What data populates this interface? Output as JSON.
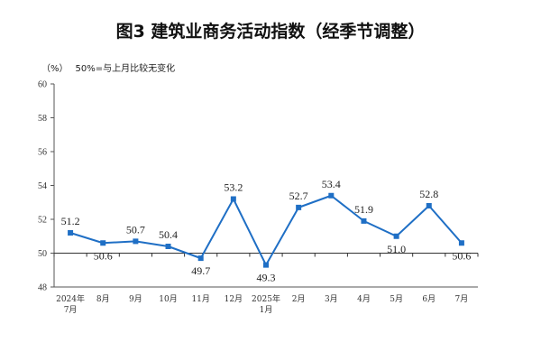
{
  "chart_data": {
    "type": "line",
    "title": "图3  建筑业商务活动指数（经季节调整）",
    "unit": "（%）",
    "note": "50%=与上月比较无变化",
    "categories": [
      [
        "2024年",
        "7月"
      ],
      [
        "8月"
      ],
      [
        "9月"
      ],
      [
        "10月"
      ],
      [
        "11月"
      ],
      [
        "12月"
      ],
      [
        "2025年",
        "1月"
      ],
      [
        "2月"
      ],
      [
        "3月"
      ],
      [
        "4月"
      ],
      [
        "5月"
      ],
      [
        "6月"
      ],
      [
        "7月"
      ]
    ],
    "values": [
      51.2,
      50.6,
      50.7,
      50.4,
      49.7,
      53.2,
      49.3,
      52.7,
      53.4,
      51.9,
      51.0,
      52.8,
      50.6
    ],
    "data_labels": [
      "51.2",
      "50.6",
      "50.7",
      "50.4",
      "49.7",
      "53.2",
      "49.3",
      "52.7",
      "53.4",
      "51.9",
      "51.0",
      "52.8",
      "50.6"
    ],
    "ylim": [
      48,
      60
    ],
    "yticks": [
      48,
      50,
      52,
      54,
      56,
      58,
      60
    ],
    "reference_line": 50,
    "line_color": "#1f6fc5",
    "grid": false
  }
}
